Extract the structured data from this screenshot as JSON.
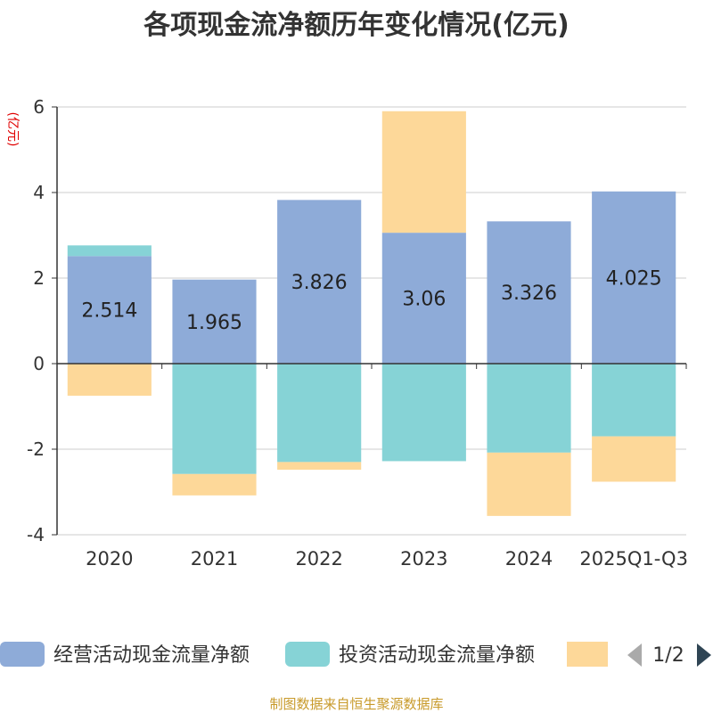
{
  "chart_data": {
    "type": "bar",
    "stacked": true,
    "title": "各项现金流净额历年变化情况(亿元)",
    "ylabel": "(亿元)",
    "xlabel": "",
    "categories": [
      "2020",
      "2021",
      "2022",
      "2023",
      "2024",
      "2025Q1-Q3"
    ],
    "ylim": [
      -4,
      6
    ],
    "yticks": [
      6,
      4,
      2,
      0,
      -2,
      -4
    ],
    "grid": true,
    "series": [
      {
        "name": "经营活动现金流量净额",
        "color": "#8eabd8",
        "values": [
          2.514,
          1.965,
          3.826,
          3.06,
          3.326,
          4.025
        ]
      },
      {
        "name": "投资活动现金流量净额",
        "color": "#86d3d6",
        "values": [
          0.25,
          -2.58,
          -2.3,
          -2.28,
          -2.08,
          -1.7
        ]
      },
      {
        "name": "",
        "color": "#fdd899",
        "values": [
          -0.75,
          -0.5,
          -0.18,
          2.84,
          -1.48,
          -1.06
        ]
      }
    ],
    "data_labels": [
      "2.514",
      "1.965",
      "3.826",
      "3.06",
      "3.326",
      "4.025"
    ]
  },
  "legend": {
    "page_indicator": "1/2"
  },
  "source": "制图数据来自恒生聚源数据库",
  "colors": {
    "axis": "#333333",
    "grid": "#cccccc",
    "source": "#c89a2a",
    "unit": "#e00000"
  }
}
